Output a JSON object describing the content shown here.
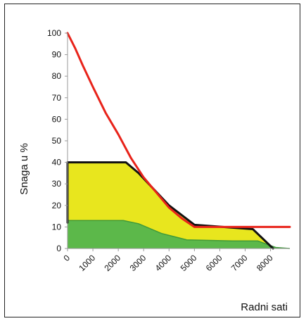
{
  "chart_data": {
    "type": "area",
    "xlabel": "Radni sati",
    "ylabel": "Snaga u %",
    "xlim": [
      0,
      8760
    ],
    "ylim": [
      0,
      100
    ],
    "y_ticks": [
      "0",
      "10",
      "20",
      "30",
      "40",
      "50",
      "60",
      "70",
      "80",
      "90",
      "100"
    ],
    "x_ticks": [
      "0",
      "1000",
      "2000",
      "3000",
      "4000",
      "5000",
      "6000",
      "7000",
      "8000"
    ],
    "grid": false,
    "series": [
      {
        "color": "#e8e61e",
        "x": [
          0,
          2300,
          2800,
          4000,
          5000,
          7300,
          8100
        ],
        "y": [
          40,
          40,
          35,
          20,
          11,
          9,
          0
        ]
      },
      {
        "color": "#5cb84a",
        "x": [
          0,
          2200,
          2800,
          3700,
          4700,
          6500,
          7500,
          8200,
          8760
        ],
        "y": [
          13,
          13,
          11.5,
          7,
          4,
          3.5,
          3.5,
          0.5,
          0
        ]
      },
      {
        "color": "#111111",
        "x": [
          0,
          0,
          2300,
          2800,
          4000,
          5000,
          7300,
          8100
        ],
        "y": [
          12,
          40,
          40,
          35,
          20,
          11,
          9,
          0
        ]
      },
      {
        "color": "#e8231a",
        "x": [
          0,
          300,
          600,
          1000,
          1500,
          2000,
          2500,
          3000,
          3500,
          4000,
          4500,
          5000,
          6000,
          7000,
          8000,
          8760
        ],
        "y": [
          100,
          93,
          85,
          75,
          63,
          53,
          42,
          33,
          26,
          19,
          14,
          10,
          10,
          10,
          10,
          10
        ]
      }
    ]
  }
}
